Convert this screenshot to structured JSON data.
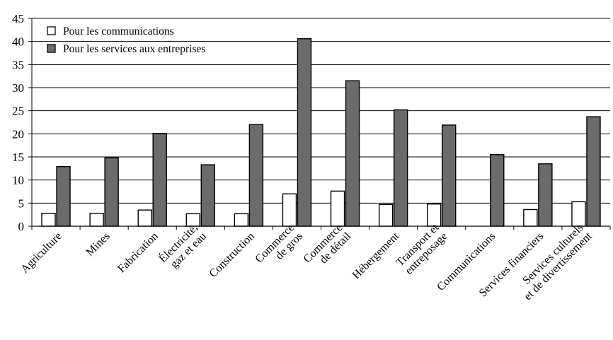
{
  "chart_data": {
    "type": "bar",
    "title": "",
    "xlabel": "",
    "ylabel": "",
    "ylim": [
      0,
      45
    ],
    "yticks": [
      0,
      5,
      10,
      15,
      20,
      25,
      30,
      35,
      40,
      45
    ],
    "grid": true,
    "legend_position": "top-left",
    "categories": [
      [
        "Agriculture"
      ],
      [
        "Mines"
      ],
      [
        "Fabrication"
      ],
      [
        "Électricité,",
        "gaz et eau"
      ],
      [
        "Construction"
      ],
      [
        "Commerce",
        "de gros"
      ],
      [
        "Commerce",
        "de détail"
      ],
      [
        "Hébergement"
      ],
      [
        "Transport et",
        "entreposage"
      ],
      [
        "Communications"
      ],
      [
        "Services financiers"
      ],
      [
        "Services culturels",
        "et de divertissement"
      ]
    ],
    "series": [
      {
        "name": "Pour les communications",
        "color": "#ffffff",
        "values": [
          2.8,
          2.8,
          3.5,
          2.7,
          2.7,
          7.0,
          7.6,
          4.7,
          4.8,
          0,
          3.6,
          5.3
        ]
      },
      {
        "name": "Pour les services aux entreprises",
        "color": "#6b6b6b",
        "values": [
          12.9,
          14.8,
          20.1,
          13.3,
          22.0,
          40.6,
          31.5,
          25.2,
          21.9,
          15.5,
          13.5,
          23.7
        ]
      }
    ]
  }
}
